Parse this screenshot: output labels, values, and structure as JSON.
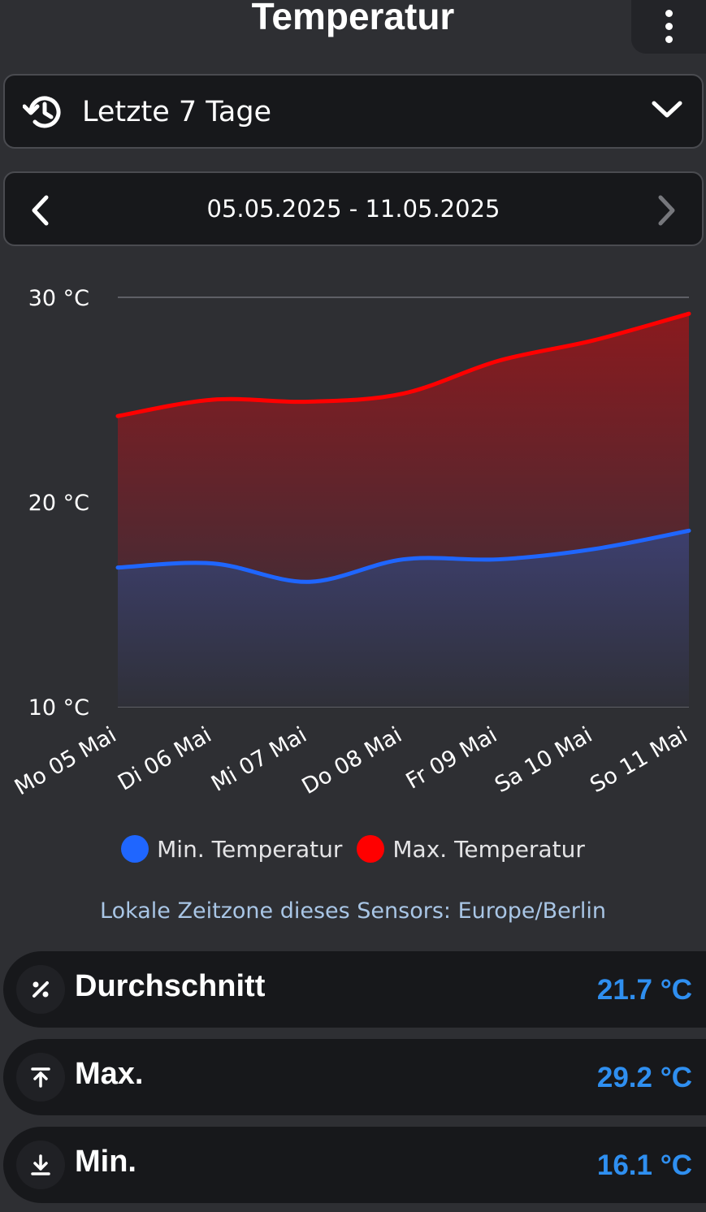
{
  "header": {
    "title": "Temperatur"
  },
  "range_select": {
    "label": "Letzte 7 Tage"
  },
  "date_nav": {
    "range": "05.05.2025 - 11.05.2025"
  },
  "chart_data": {
    "type": "area",
    "categories": [
      "Mo 05 Mai",
      "Di 06 Mai",
      "Mi 07 Mai",
      "Do 08 Mai",
      "Fr 09 Mai",
      "Sa 10 Mai",
      "So 11 Mai"
    ],
    "series": [
      {
        "name": "Min. Temperatur",
        "color": "#1f66ff",
        "values": [
          16.8,
          17.0,
          16.1,
          17.2,
          17.2,
          17.7,
          18.6
        ]
      },
      {
        "name": "Max. Temperatur",
        "color": "#ff0000",
        "values": [
          24.2,
          25.0,
          24.9,
          25.3,
          26.9,
          27.9,
          29.2
        ]
      }
    ],
    "ylim": [
      10,
      30
    ],
    "yticks": [
      10,
      20,
      30
    ],
    "ytick_labels": [
      "10 °C",
      "20 °C",
      "30 °C"
    ],
    "grid": true,
    "legend": "bottom"
  },
  "timezone_note": "Lokale Zeitzone dieses Sensors: Europe/Berlin",
  "stats": [
    {
      "label": "Durchschnitt",
      "value": "21.7 °C"
    },
    {
      "label": "Max.",
      "value": "29.2 °C"
    },
    {
      "label": "Min.",
      "value": "16.1 °C"
    }
  ]
}
